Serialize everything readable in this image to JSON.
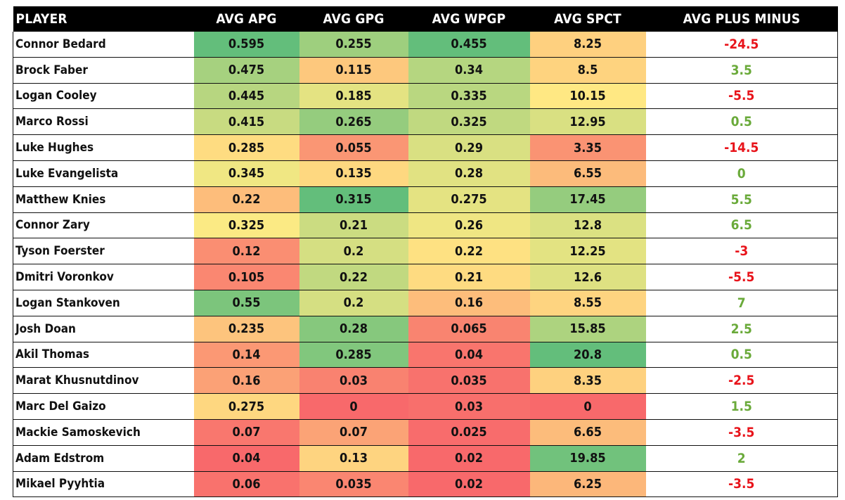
{
  "chart_data": {
    "type": "table",
    "columns": [
      "PLAYER",
      "AVG APG",
      "AVG GPG",
      "AVG WPGP",
      "AVG SPCT",
      "AVG PLUS MINUS"
    ],
    "colors": {
      "scale_low": "#f8696b",
      "scale_mid": "#ffeb84",
      "scale_high": "#63be7b",
      "plus_minus_positive": "#6aaa3a",
      "plus_minus_negative": "#e8141b",
      "header_bg": "#000000",
      "header_text": "#ffffff"
    },
    "rows": [
      {
        "player": "Connor Bedard",
        "apg": "0.595",
        "gpg": "0.255",
        "wpgp": "0.455",
        "spct": "8.25",
        "plus_minus": "-24.5"
      },
      {
        "player": "Brock Faber",
        "apg": "0.475",
        "gpg": "0.115",
        "wpgp": "0.34",
        "spct": "8.5",
        "plus_minus": "3.5"
      },
      {
        "player": "Logan Cooley",
        "apg": "0.445",
        "gpg": "0.185",
        "wpgp": "0.335",
        "spct": "10.15",
        "plus_minus": "-5.5"
      },
      {
        "player": "Marco Rossi",
        "apg": "0.415",
        "gpg": "0.265",
        "wpgp": "0.325",
        "spct": "12.95",
        "plus_minus": "0.5"
      },
      {
        "player": "Luke Hughes",
        "apg": "0.285",
        "gpg": "0.055",
        "wpgp": "0.29",
        "spct": "3.35",
        "plus_minus": "-14.5"
      },
      {
        "player": "Luke Evangelista",
        "apg": "0.345",
        "gpg": "0.135",
        "wpgp": "0.28",
        "spct": "6.55",
        "plus_minus": "0"
      },
      {
        "player": "Matthew Knies",
        "apg": "0.22",
        "gpg": "0.315",
        "wpgp": "0.275",
        "spct": "17.45",
        "plus_minus": "5.5"
      },
      {
        "player": "Connor Zary",
        "apg": "0.325",
        "gpg": "0.21",
        "wpgp": "0.26",
        "spct": "12.8",
        "plus_minus": "6.5"
      },
      {
        "player": "Tyson Foerster",
        "apg": "0.12",
        "gpg": "0.2",
        "wpgp": "0.22",
        "spct": "12.25",
        "plus_minus": "-3"
      },
      {
        "player": "Dmitri Voronkov",
        "apg": "0.105",
        "gpg": "0.22",
        "wpgp": "0.21",
        "spct": "12.6",
        "plus_minus": "-5.5"
      },
      {
        "player": "Logan Stankoven",
        "apg": "0.55",
        "gpg": "0.2",
        "wpgp": "0.16",
        "spct": "8.55",
        "plus_minus": "7"
      },
      {
        "player": "Josh Doan",
        "apg": "0.235",
        "gpg": "0.28",
        "wpgp": "0.065",
        "spct": "15.85",
        "plus_minus": "2.5"
      },
      {
        "player": "Akil Thomas",
        "apg": "0.14",
        "gpg": "0.285",
        "wpgp": "0.04",
        "spct": "20.8",
        "plus_minus": "0.5"
      },
      {
        "player": "Marat Khusnutdinov",
        "apg": "0.16",
        "gpg": "0.03",
        "wpgp": "0.035",
        "spct": "8.35",
        "plus_minus": "-2.5"
      },
      {
        "player": "Marc Del Gaizo",
        "apg": "0.275",
        "gpg": "0",
        "wpgp": "0.03",
        "spct": "0",
        "plus_minus": "1.5"
      },
      {
        "player": "Mackie Samoskevich",
        "apg": "0.07",
        "gpg": "0.07",
        "wpgp": "0.025",
        "spct": "6.65",
        "plus_minus": "-3.5"
      },
      {
        "player": "Adam Edstrom",
        "apg": "0.04",
        "gpg": "0.13",
        "wpgp": "0.02",
        "spct": "19.85",
        "plus_minus": "2"
      },
      {
        "player": "Mikael Pyyhtia",
        "apg": "0.06",
        "gpg": "0.035",
        "wpgp": "0.02",
        "spct": "6.25",
        "plus_minus": "-3.5"
      }
    ]
  }
}
